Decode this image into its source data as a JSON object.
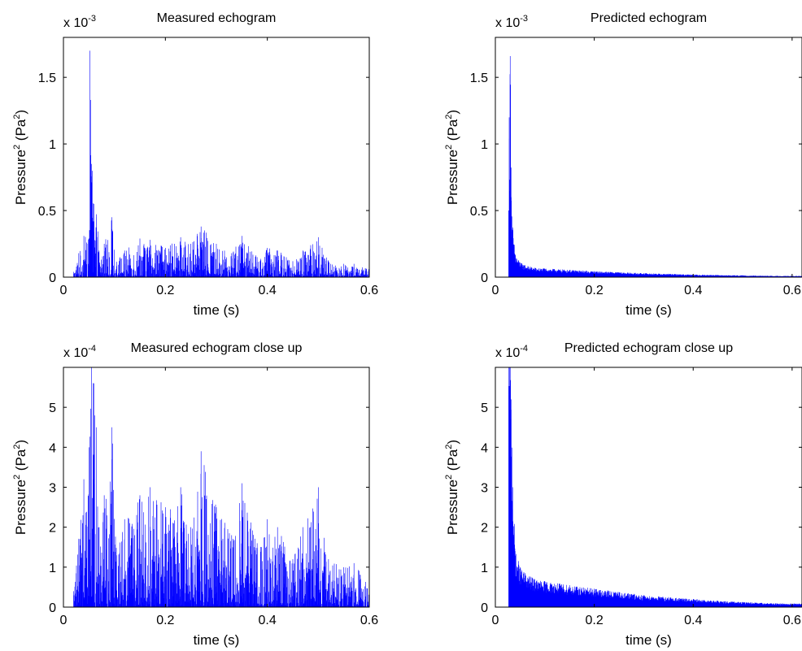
{
  "colors": {
    "line": "#0000ff",
    "axes": "#000000",
    "background": "#ffffff"
  },
  "chart_data": [
    {
      "type": "area",
      "title": "Measured echogram",
      "xlabel": "time (s)",
      "ylabel_main": "Pressure",
      "ylabel_sup1": "2",
      "ylabel_mid": " (Pa",
      "ylabel_sup2": "2",
      "ylabel_end": ")",
      "exponent_base": "x 10",
      "exponent_power": "-3",
      "xlim": [
        0,
        0.6
      ],
      "ylim": [
        0,
        0.0018
      ],
      "xticks": [
        0,
        0.2,
        0.4,
        0.6
      ],
      "xtick_labels": [
        "0",
        "0.2",
        "0.4",
        "0.6"
      ],
      "yticks": [
        0,
        0.0005,
        0.001,
        0.0015
      ],
      "ytick_labels": [
        "0",
        "0.5",
        "1",
        "1.5"
      ],
      "signal_onset": 0.02,
      "series": [
        {
          "x": [
            0.02,
            0.03,
            0.04,
            0.05,
            0.052,
            0.055,
            0.06,
            0.065,
            0.07,
            0.08,
            0.095,
            0.1,
            0.12,
            0.15,
            0.17,
            0.2,
            0.23,
            0.25,
            0.27,
            0.3,
            0.33,
            0.35,
            0.38,
            0.4,
            0.42,
            0.45,
            0.47,
            0.5,
            0.52,
            0.55,
            0.57,
            0.6
          ],
          "y": [
            4e-05,
            0.00018,
            0.00031,
            0.00029,
            0.0017,
            0.00085,
            0.00055,
            0.00045,
            0.0002,
            0.00025,
            0.00045,
            0.00015,
            0.0002,
            0.00029,
            0.00028,
            0.00022,
            0.0003,
            0.00025,
            0.00038,
            0.00025,
            0.00018,
            0.00031,
            0.00015,
            0.00022,
            0.0002,
            0.00012,
            0.0002,
            0.0003,
            0.00012,
            0.0001,
            0.0001,
            6e-05
          ]
        }
      ]
    },
    {
      "type": "area",
      "title": "Predicted echogram",
      "xlabel": "time (s)",
      "ylabel_main": "Pressure",
      "ylabel_sup1": "2",
      "ylabel_mid": " (Pa",
      "ylabel_sup2": "2",
      "ylabel_end": ")",
      "exponent_base": "x 10",
      "exponent_power": "-3",
      "xlim": [
        0,
        0.62
      ],
      "ylim": [
        0,
        0.0018
      ],
      "xticks": [
        0,
        0.2,
        0.4,
        0.6
      ],
      "xtick_labels": [
        "0",
        "0.2",
        "0.4",
        "0.6"
      ],
      "yticks": [
        0,
        0.0005,
        0.001,
        0.0015
      ],
      "ytick_labels": [
        "0",
        "0.5",
        "1",
        "1.5"
      ],
      "signal_onset": 0.027,
      "series": [
        {
          "x": [
            0.027,
            0.028,
            0.03,
            0.032,
            0.035,
            0.04,
            0.05,
            0.06,
            0.08,
            0.1,
            0.15,
            0.2,
            0.25,
            0.3,
            0.35,
            0.4,
            0.45,
            0.5,
            0.55,
            0.6
          ],
          "y": [
            0.0005,
            0.0012,
            0.00166,
            0.0006,
            0.00035,
            0.00017,
            0.00011,
            9e-05,
            7e-05,
            6.5e-05,
            5.5e-05,
            4.5e-05,
            3.7e-05,
            3e-05,
            2.5e-05,
            2e-05,
            1.6e-05,
            1.3e-05,
            1e-05,
            9e-06
          ]
        }
      ]
    },
    {
      "type": "area",
      "title": "Measured echogram close up",
      "xlabel": "time (s)",
      "ylabel_main": "Pressure",
      "ylabel_sup1": "2",
      "ylabel_mid": " (Pa",
      "ylabel_sup2": "2",
      "ylabel_end": ")",
      "exponent_base": "x 10",
      "exponent_power": "-4",
      "xlim": [
        0,
        0.6
      ],
      "ylim": [
        0,
        0.0006
      ],
      "xticks": [
        0,
        0.2,
        0.4,
        0.6
      ],
      "xtick_labels": [
        "0",
        "0.2",
        "0.4",
        "0.6"
      ],
      "yticks": [
        0,
        0.0001,
        0.0002,
        0.0003,
        0.0004,
        0.0005
      ],
      "ytick_labels": [
        "0",
        "1",
        "2",
        "3",
        "4",
        "5"
      ],
      "signal_onset": 0.02,
      "series": [
        {
          "x": [
            0.02,
            0.03,
            0.04,
            0.05,
            0.055,
            0.06,
            0.065,
            0.07,
            0.08,
            0.095,
            0.1,
            0.12,
            0.15,
            0.17,
            0.2,
            0.23,
            0.25,
            0.27,
            0.3,
            0.33,
            0.35,
            0.38,
            0.4,
            0.42,
            0.45,
            0.47,
            0.5,
            0.52,
            0.55,
            0.57,
            0.6
          ],
          "y": [
            4e-05,
            0.00017,
            0.00032,
            0.0004,
            0.0006,
            0.00056,
            0.00045,
            0.0002,
            0.00028,
            0.00045,
            0.00018,
            0.00022,
            0.00028,
            0.0003,
            0.00025,
            0.0003,
            0.0002,
            0.00039,
            0.00025,
            0.00018,
            0.00031,
            0.00016,
            0.00022,
            0.0002,
            0.00012,
            0.0002,
            0.0003,
            0.00012,
            0.0001,
            0.00011,
            6e-05
          ]
        }
      ]
    },
    {
      "type": "area",
      "title": "Predicted echogram close up",
      "xlabel": "time (s)",
      "ylabel_main": "Pressure",
      "ylabel_sup1": "2",
      "ylabel_mid": " (Pa",
      "ylabel_sup2": "2",
      "ylabel_end": ")",
      "exponent_base": "x 10",
      "exponent_power": "-4",
      "xlim": [
        0,
        0.62
      ],
      "ylim": [
        0,
        0.0006
      ],
      "xticks": [
        0,
        0.2,
        0.4,
        0.6
      ],
      "xtick_labels": [
        "0",
        "0.2",
        "0.4",
        "0.6"
      ],
      "yticks": [
        0,
        0.0001,
        0.0002,
        0.0003,
        0.0004,
        0.0005
      ],
      "ytick_labels": [
        "0",
        "1",
        "2",
        "3",
        "4",
        "5"
      ],
      "signal_onset": 0.027,
      "series": [
        {
          "x": [
            0.027,
            0.03,
            0.032,
            0.035,
            0.04,
            0.05,
            0.06,
            0.08,
            0.1,
            0.15,
            0.2,
            0.25,
            0.3,
            0.35,
            0.4,
            0.45,
            0.5,
            0.55,
            0.6
          ],
          "y": [
            0.0006,
            0.0006,
            0.00052,
            0.0003,
            0.00014,
            0.0001,
            8.5e-05,
            7e-05,
            6.5e-05,
            5.5e-05,
            4.6e-05,
            3.8e-05,
            3e-05,
            2.5e-05,
            2e-05,
            1.6e-05,
            1.3e-05,
            1e-05,
            9e-06
          ]
        }
      ]
    }
  ]
}
